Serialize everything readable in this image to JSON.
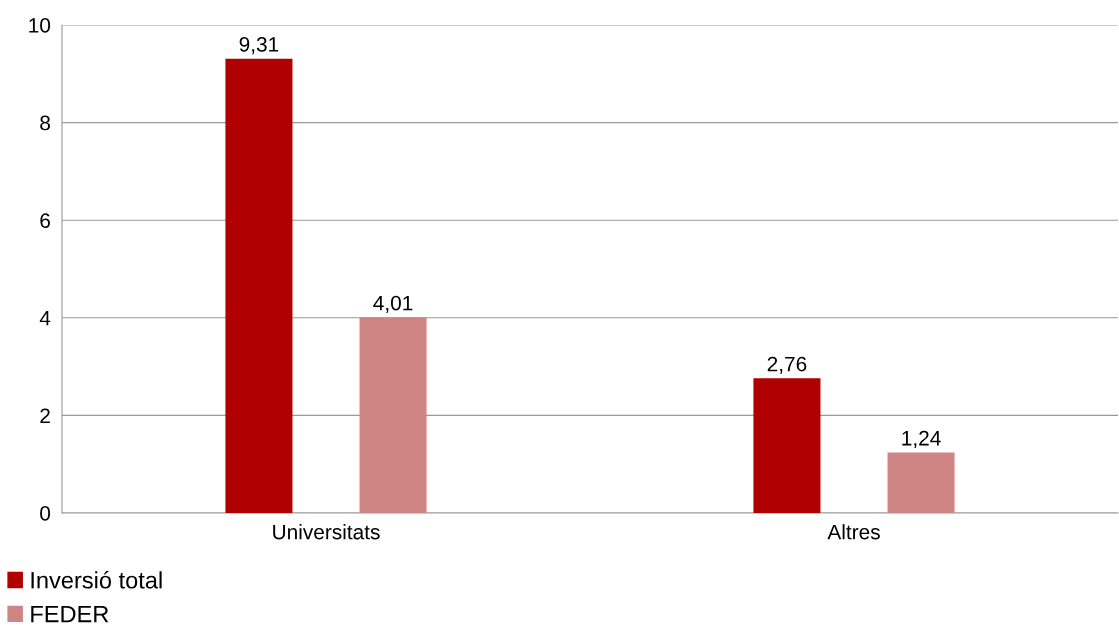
{
  "chart_data": {
    "type": "bar",
    "categories": [
      "Universitats",
      "Altres"
    ],
    "series": [
      {
        "name": "Inversió total",
        "color": "#b00000",
        "values": [
          9.31,
          2.76
        ],
        "value_labels": [
          "9,31",
          "2,76"
        ]
      },
      {
        "name": "FEDER",
        "color": "#d08585",
        "values": [
          4.01,
          1.24
        ],
        "value_labels": [
          "4,01",
          "1,24"
        ]
      }
    ],
    "ylim": [
      0,
      10
    ],
    "yticks": [
      0,
      2,
      4,
      6,
      8,
      10
    ],
    "grid": "y",
    "legend": "bottom left"
  }
}
